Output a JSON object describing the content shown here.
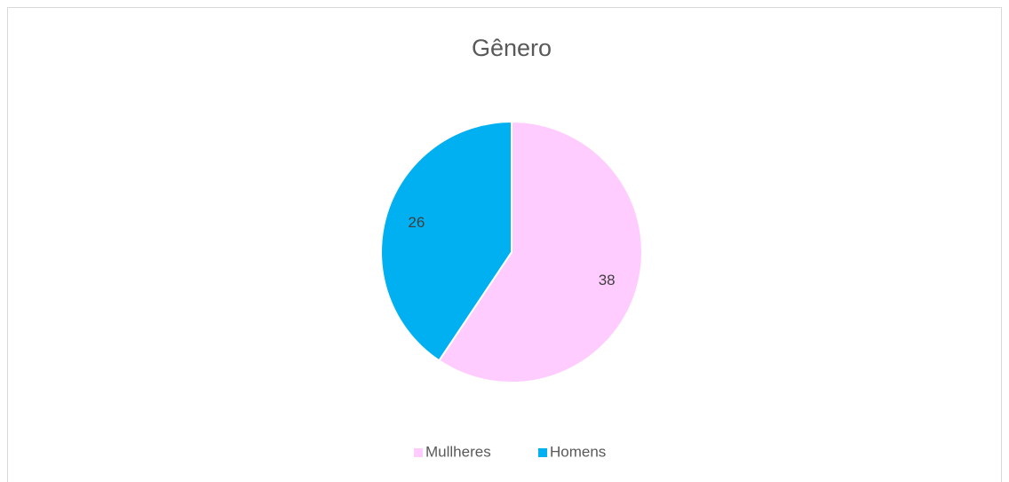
{
  "chart_data": {
    "type": "pie",
    "title": "Gênero",
    "categories": [
      "Mullheres",
      "Homens"
    ],
    "values": [
      38,
      26
    ],
    "colors": [
      "#ffccff",
      "#00b0f0"
    ],
    "legend": "bottom"
  }
}
